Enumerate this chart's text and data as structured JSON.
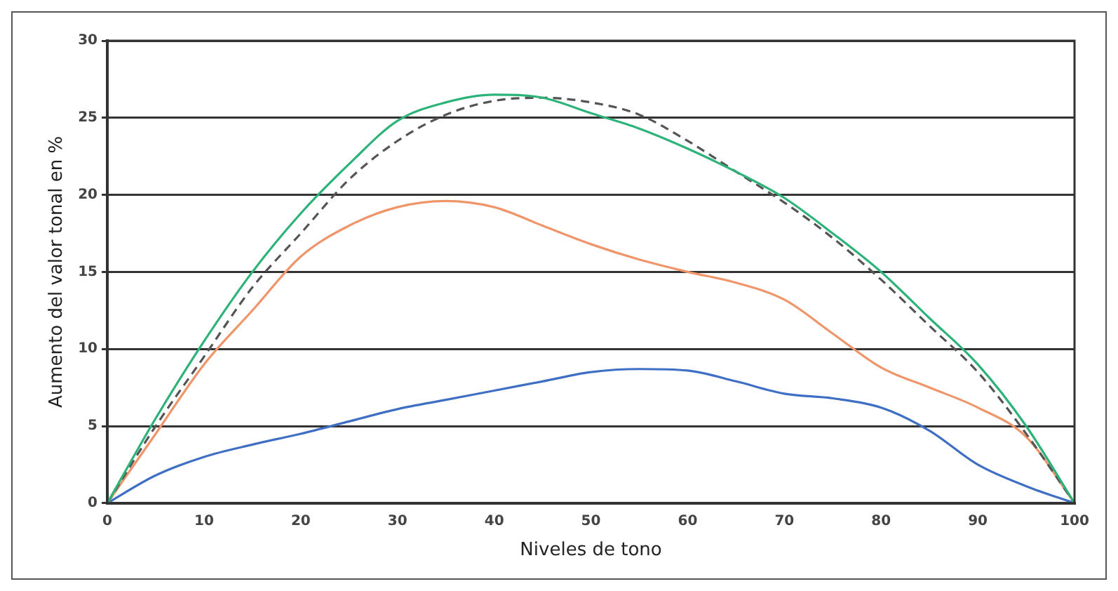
{
  "chart_data": {
    "type": "line",
    "xlabel": "Niveles de tono",
    "ylabel": "Aumento del valor tonal en %",
    "x": [
      0,
      5,
      10,
      15,
      20,
      25,
      30,
      35,
      40,
      45,
      50,
      55,
      60,
      65,
      70,
      75,
      80,
      85,
      90,
      95,
      100
    ],
    "xlim": [
      0,
      100
    ],
    "xticks": [
      0,
      10,
      20,
      30,
      40,
      50,
      60,
      70,
      80,
      90,
      100
    ],
    "ylim": [
      0,
      30
    ],
    "yticks": [
      0,
      5,
      10,
      15,
      20,
      25,
      30
    ],
    "grid": "y",
    "legend": false,
    "marker": "none",
    "series": [
      {
        "color": "#2db37a",
        "line_style": "solid",
        "values": [
          0,
          5.5,
          10.5,
          15,
          18.8,
          22,
          24.8,
          26,
          26.5,
          26.3,
          25.3,
          24.3,
          23,
          21.5,
          19.8,
          17.5,
          15,
          12,
          9,
          5,
          0
        ]
      },
      {
        "color": "#555555",
        "line_style": "dashed",
        "values": [
          0,
          5,
          9.5,
          14,
          17.5,
          21,
          23.5,
          25.2,
          26.1,
          26.3,
          26,
          25.2,
          23.5,
          21.5,
          19.5,
          17.2,
          14.5,
          11.5,
          8.5,
          4.5,
          0
        ]
      },
      {
        "color": "#f0956a",
        "line_style": "solid",
        "values": [
          0,
          4.5,
          9,
          12.5,
          16,
          18,
          19.2,
          19.6,
          19.2,
          18,
          16.8,
          15.8,
          15,
          14.3,
          13.2,
          11,
          8.8,
          7.5,
          6.2,
          4.3,
          0
        ]
      },
      {
        "color": "#3e6fc4",
        "line_style": "solid",
        "values": [
          0,
          1.8,
          3,
          3.8,
          4.5,
          5.3,
          6.1,
          6.7,
          7.3,
          7.9,
          8.5,
          8.7,
          8.6,
          7.9,
          7.1,
          6.8,
          6.2,
          4.7,
          2.5,
          1.1,
          0
        ]
      }
    ]
  }
}
